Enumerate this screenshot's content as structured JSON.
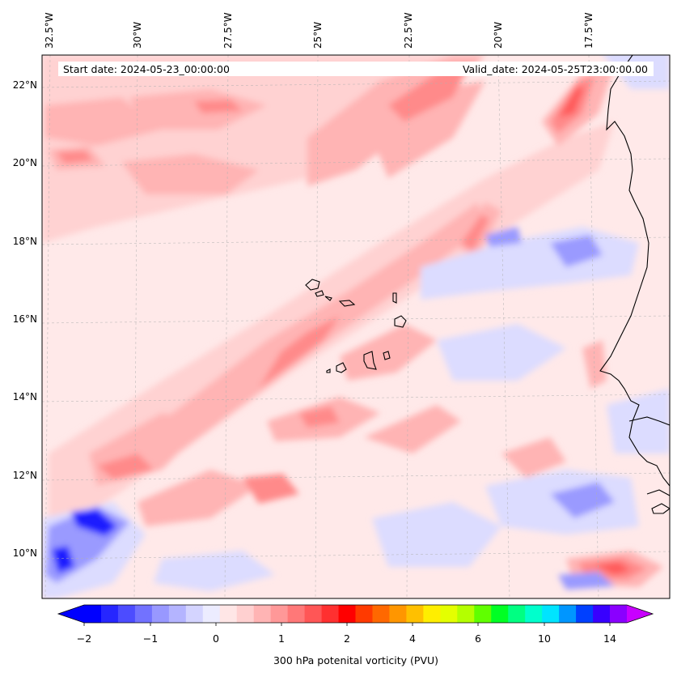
{
  "header": {
    "start_date": "Start date: 2024-05-23_00:00:00",
    "valid_date": "Valid_date: 2024-05-25T23:00:00.00"
  },
  "longitude_labels": [
    "32.5°W",
    "30°W",
    "27.5°W",
    "25°W",
    "22.5°W",
    "20°W",
    "17.5°W"
  ],
  "latitude_labels": [
    "22°N",
    "20°N",
    "18°N",
    "16°N",
    "14°N",
    "12°N",
    "10°N"
  ],
  "colorbar": {
    "label": "300 hPa potenital vorticity (PVU)",
    "ticks": [
      "−2",
      "−1",
      "0",
      "1",
      "2",
      "4",
      "6",
      "10",
      "14"
    ],
    "colors": [
      "#0000ff",
      "#2626ff",
      "#4c4cff",
      "#7272ff",
      "#9898ff",
      "#b4b4ff",
      "#d4d4ff",
      "#ececff",
      "#ffe6e6",
      "#ffd0d0",
      "#ffb4b4",
      "#ff9898",
      "#ff7878",
      "#ff5656",
      "#ff3030",
      "#ff0000",
      "#ff3a00",
      "#ff6800",
      "#ff9600",
      "#ffc000",
      "#ffee00",
      "#e4ff00",
      "#b4ff00",
      "#60ff00",
      "#00ff24",
      "#00ff82",
      "#00ffcc",
      "#00e4ff",
      "#0096ff",
      "#0040ff",
      "#3800ff",
      "#8a00ff"
    ],
    "under_color": "#0000ff",
    "over_color": "#c800ff"
  },
  "map_colors": {
    "background": "#ffe9e9",
    "light_pink": "#ffd2d2",
    "pink": "#ffb4b4",
    "red": "#ff8a8a",
    "deep_red": "#ff5a5a",
    "light_blue": "#dcdcff",
    "blue": "#9a9aff",
    "deep_blue": "#1a1aff",
    "coastline": "#000000"
  }
}
